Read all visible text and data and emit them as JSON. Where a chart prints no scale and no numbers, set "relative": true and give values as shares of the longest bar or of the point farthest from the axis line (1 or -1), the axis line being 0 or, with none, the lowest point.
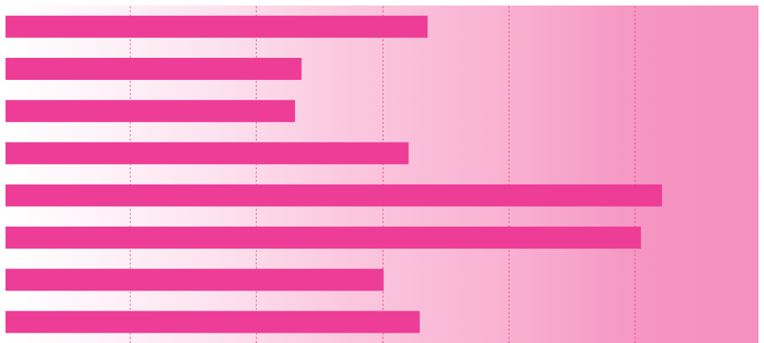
{
  "chart_data": {
    "type": "bar",
    "orientation": "horizontal",
    "relative": true,
    "categories": [
      null,
      null,
      null,
      null,
      null,
      null,
      null,
      null
    ],
    "values": [
      0.643,
      0.451,
      0.441,
      0.614,
      1,
      0.968,
      0.576,
      0.631
    ],
    "color": "#ee3d96",
    "ref_lines": [
      {
        "axis": "x",
        "value": 0.19,
        "color": "#e0457f",
        "line_style": "dashed"
      },
      {
        "axis": "x",
        "value": 0.382,
        "color": "#e0457f",
        "line_style": "dashed"
      },
      {
        "axis": "x",
        "value": 0.575,
        "color": "#e0457f",
        "line_style": "dashed"
      },
      {
        "axis": "x",
        "value": 0.767,
        "color": "#e0457f",
        "line_style": "dashed"
      },
      {
        "axis": "x",
        "value": 0.959,
        "color": "#e0457f",
        "line_style": "dashed"
      }
    ]
  }
}
